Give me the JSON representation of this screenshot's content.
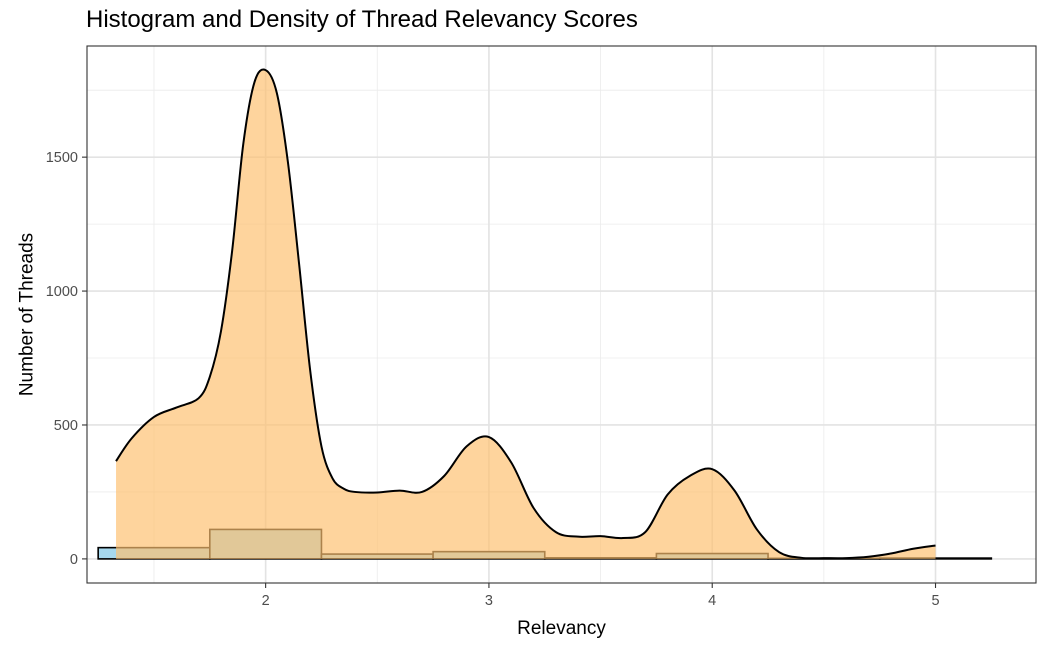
{
  "chart_data": {
    "type": "bar",
    "title": "Histogram and Density of Thread Relevancy Scores",
    "xlabel": "Relevancy",
    "ylabel": "Number of Threads",
    "xlim": [
      1.2,
      5.45
    ],
    "ylim": [
      -90,
      1915
    ],
    "x_ticks": [
      2,
      3,
      4,
      5
    ],
    "y_ticks": [
      0,
      500,
      1000,
      1500
    ],
    "grid": true,
    "colors": {
      "histogram_fill": "#a6d8ee",
      "density_fill": "#fdbf6f",
      "density_line": "#000000",
      "overlap_stroke": "#7f5a12"
    },
    "histogram": {
      "name": "histogram",
      "bin_width": 0.5,
      "bins": [
        {
          "x0": 1.25,
          "x1": 1.75,
          "count": 42
        },
        {
          "x0": 1.75,
          "x1": 2.25,
          "count": 110
        },
        {
          "x0": 2.25,
          "x1": 2.75,
          "count": 18
        },
        {
          "x0": 2.75,
          "x1": 3.25,
          "count": 27
        },
        {
          "x0": 3.25,
          "x1": 3.75,
          "count": 4
        },
        {
          "x0": 3.75,
          "x1": 4.25,
          "count": 20
        },
        {
          "x0": 4.25,
          "x1": 4.75,
          "count": 2
        },
        {
          "x0": 4.75,
          "x1": 5.25,
          "count": 3
        }
      ]
    },
    "density": {
      "name": "density",
      "x": [
        1.33,
        1.4,
        1.5,
        1.6,
        1.7,
        1.75,
        1.8,
        1.85,
        1.9,
        1.95,
        2.0,
        2.05,
        2.1,
        2.15,
        2.2,
        2.25,
        2.3,
        2.35,
        2.4,
        2.5,
        2.6,
        2.7,
        2.8,
        2.9,
        3.0,
        3.1,
        3.2,
        3.3,
        3.4,
        3.5,
        3.6,
        3.7,
        3.8,
        3.9,
        4.0,
        4.1,
        4.2,
        4.3,
        4.4,
        4.5,
        4.6,
        4.7,
        4.8,
        4.9,
        5.0
      ],
      "y": [
        365,
        450,
        530,
        565,
        600,
        680,
        850,
        1150,
        1550,
        1780,
        1825,
        1740,
        1480,
        1100,
        700,
        420,
        300,
        262,
        250,
        248,
        255,
        250,
        310,
        420,
        455,
        360,
        190,
        100,
        83,
        85,
        78,
        100,
        240,
        310,
        335,
        255,
        110,
        25,
        4,
        3,
        3,
        8,
        20,
        38,
        50
      ]
    }
  }
}
